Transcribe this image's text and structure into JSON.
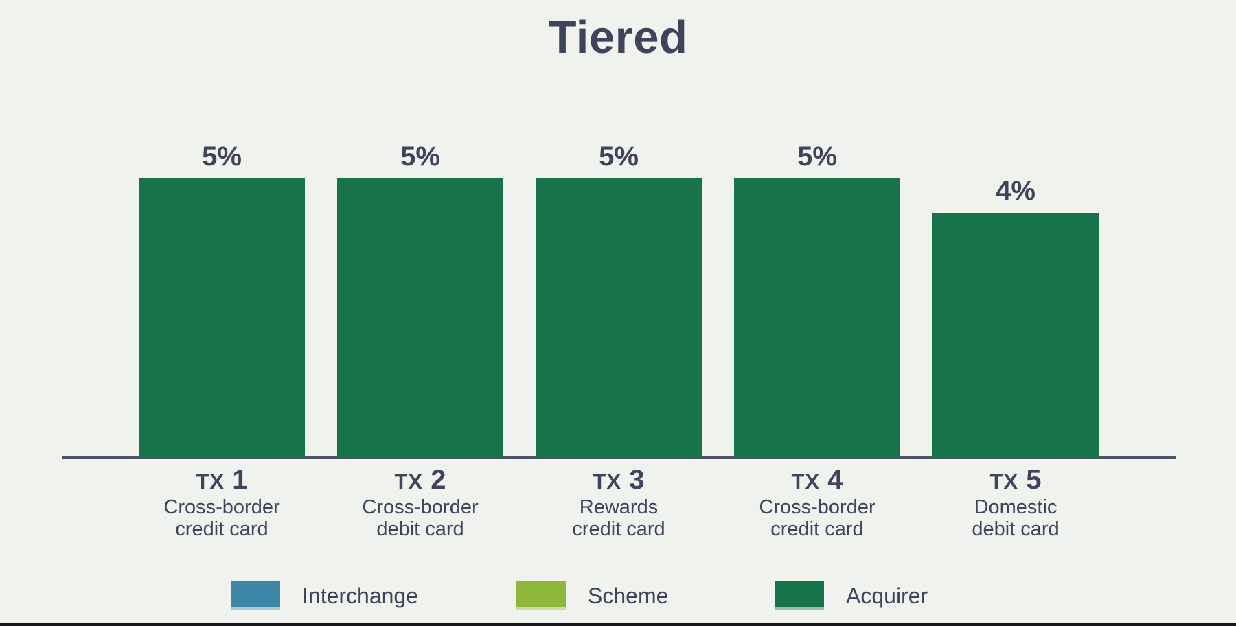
{
  "page": {
    "background_color": "#f0f2ee",
    "bottom_rule_color": "#16181d",
    "text_color": "#3d445c",
    "axis_color": "#4c5266"
  },
  "chart_data": {
    "type": "bar",
    "stacked": true,
    "title": "Tiered",
    "categories": [
      {
        "tx": "TX",
        "num": "1",
        "sublabel": [
          "Cross-border",
          "credit card"
        ]
      },
      {
        "tx": "TX",
        "num": "2",
        "sublabel": [
          "Cross-border",
          "debit card"
        ]
      },
      {
        "tx": "TX",
        "num": "3",
        "sublabel": [
          "Rewards",
          "credit card"
        ]
      },
      {
        "tx": "TX",
        "num": "4",
        "sublabel": [
          "Cross-border",
          "credit card"
        ]
      },
      {
        "tx": "TX",
        "num": "5",
        "sublabel": [
          "Domestic",
          "debit card"
        ]
      }
    ],
    "series": [
      {
        "name": "Interchange",
        "color": "#3e86a8",
        "values": [
          0,
          0,
          0,
          0,
          0
        ]
      },
      {
        "name": "Scheme",
        "color": "#8db839",
        "values": [
          0,
          0,
          0,
          0,
          0
        ]
      },
      {
        "name": "Acquirer",
        "color": "#177349",
        "values": [
          5,
          5,
          5,
          5,
          4
        ]
      }
    ],
    "value_labels": [
      "5%",
      "5%",
      "5%",
      "5%",
      "4%"
    ],
    "ylim": [
      0,
      5
    ],
    "grid": false,
    "legend_position": "bottom"
  }
}
